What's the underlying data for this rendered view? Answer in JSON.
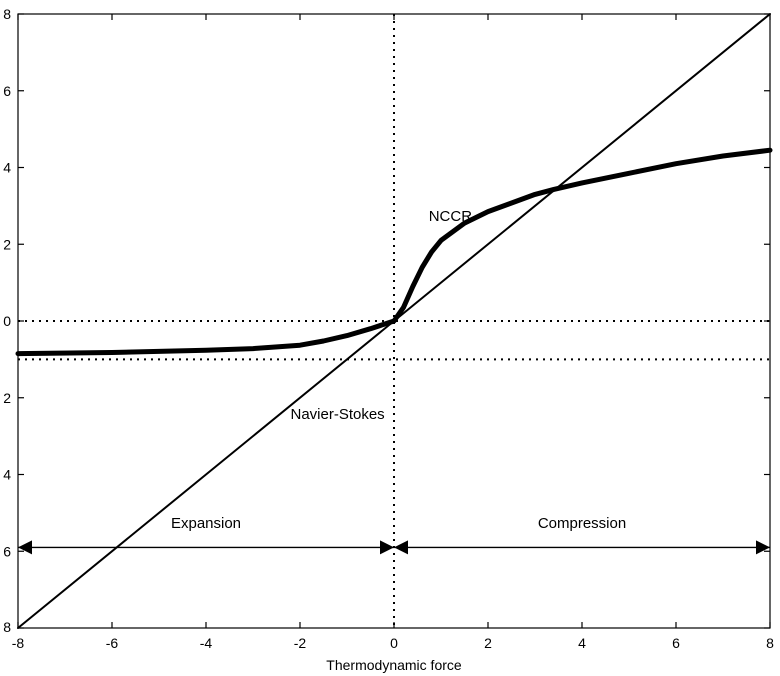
{
  "chart_data": {
    "type": "line",
    "title": "",
    "xlabel": "Thermodynamic force",
    "ylabel": "",
    "xlim": [
      -8,
      8
    ],
    "ylim": [
      -8,
      8
    ],
    "x_ticks": [
      "-8",
      "-6",
      "-4",
      "-2",
      "0",
      "2",
      "4",
      "6",
      "8"
    ],
    "y_ticks": [
      "8",
      "6",
      "4",
      "2",
      "0",
      "2",
      "4",
      "6",
      "8"
    ],
    "grid": false,
    "series": [
      {
        "name": "Navier-Stokes",
        "style": "thin-solid",
        "x": [
          -8,
          8
        ],
        "y": [
          -8,
          8
        ]
      },
      {
        "name": "NCCR",
        "style": "thick-solid",
        "x": [
          -8,
          -6,
          -4,
          -3,
          -2,
          -1.5,
          -1,
          -0.5,
          0,
          0.2,
          0.4,
          0.6,
          0.8,
          1,
          1.5,
          2,
          3,
          3.4,
          4,
          5,
          6,
          7,
          8
        ],
        "y": [
          -0.85,
          -0.82,
          -0.76,
          -0.72,
          -0.63,
          -0.52,
          -0.38,
          -0.2,
          0,
          0.35,
          0.9,
          1.4,
          1.8,
          2.1,
          2.55,
          2.85,
          3.3,
          3.43,
          3.6,
          3.85,
          4.1,
          4.3,
          4.45
        ]
      }
    ],
    "reference_lines": [
      {
        "orientation": "horizontal",
        "value": 0,
        "style": "dotted"
      },
      {
        "orientation": "horizontal",
        "value": -1,
        "style": "dotted"
      },
      {
        "orientation": "vertical",
        "value": 0,
        "style": "dotted"
      }
    ],
    "annotations": [
      {
        "text": "NCCR",
        "x": 1.2,
        "y": 2.6
      },
      {
        "text": "Navier-Stokes",
        "x": -1.2,
        "y": -2.55
      },
      {
        "text": "Expansion",
        "x": -4,
        "y": -5.4
      },
      {
        "text": "Compression",
        "x": 4,
        "y": -5.4
      }
    ],
    "arrows": [
      {
        "label": "Expansion",
        "from": -8,
        "to": 0,
        "y": -5.9
      },
      {
        "label": "Compression",
        "from": 0,
        "to": 8,
        "y": -5.9
      }
    ]
  }
}
